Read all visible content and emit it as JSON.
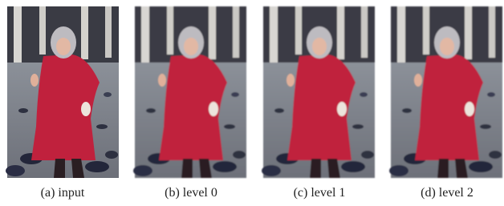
{
  "figure": {
    "panels": [
      {
        "caption": "(a) input"
      },
      {
        "caption": "(b) level 0"
      },
      {
        "caption": "(c) level 1"
      },
      {
        "caption": "(d) level 2"
      }
    ]
  }
}
